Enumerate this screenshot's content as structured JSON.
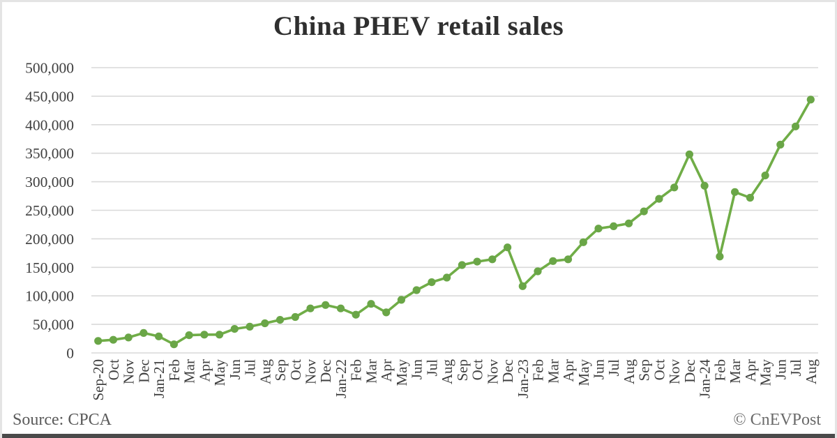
{
  "title": "China PHEV retail sales",
  "footer": {
    "source": "Source: CPCA",
    "copyright": "© CnEVPost"
  },
  "chart_data": {
    "type": "line",
    "title": "China PHEV retail sales",
    "xlabel": "",
    "ylabel": "",
    "ylim": [
      0,
      500000
    ],
    "ytick_step": 50000,
    "grid": "horizontal-only",
    "legend_position": "none",
    "line_color": "#70ad47",
    "marker": "circle",
    "marker_color": "#6aa647",
    "gridline_color": "#d9d9d9",
    "axis_text_color": "#3f3f3f",
    "categories": [
      "Sep-20",
      "Oct",
      "Nov",
      "Dec",
      "Jan-21",
      "Feb",
      "Mar",
      "Apr",
      "May",
      "Jun",
      "Jul",
      "Aug",
      "Sep",
      "Oct",
      "Nov",
      "Dec",
      "Jan-22",
      "Feb",
      "Mar",
      "Apr",
      "May",
      "Jun",
      "Jul",
      "Aug",
      "Sep",
      "Oct",
      "Nov",
      "Dec",
      "Jan-23",
      "Feb",
      "Mar",
      "Apr",
      "May",
      "Jun",
      "Jul",
      "Aug",
      "Sep",
      "Oct",
      "Nov",
      "Dec",
      "Jan-24",
      "Feb",
      "Mar",
      "Apr",
      "May",
      "Jun",
      "Jul",
      "Aug"
    ],
    "series": [
      {
        "name": "China PHEV retail sales",
        "values": [
          21000,
          23000,
          27000,
          35000,
          29000,
          15000,
          31000,
          32000,
          32000,
          42000,
          46000,
          52000,
          58000,
          63000,
          78000,
          84000,
          78000,
          67000,
          86000,
          71000,
          93000,
          110000,
          124000,
          132000,
          154000,
          160000,
          164000,
          185000,
          117000,
          143000,
          161000,
          164000,
          194000,
          218000,
          222000,
          227000,
          248000,
          270000,
          290000,
          348000,
          293000,
          169000,
          282000,
          272000,
          311000,
          365000,
          397000,
          444000
        ]
      }
    ]
  }
}
